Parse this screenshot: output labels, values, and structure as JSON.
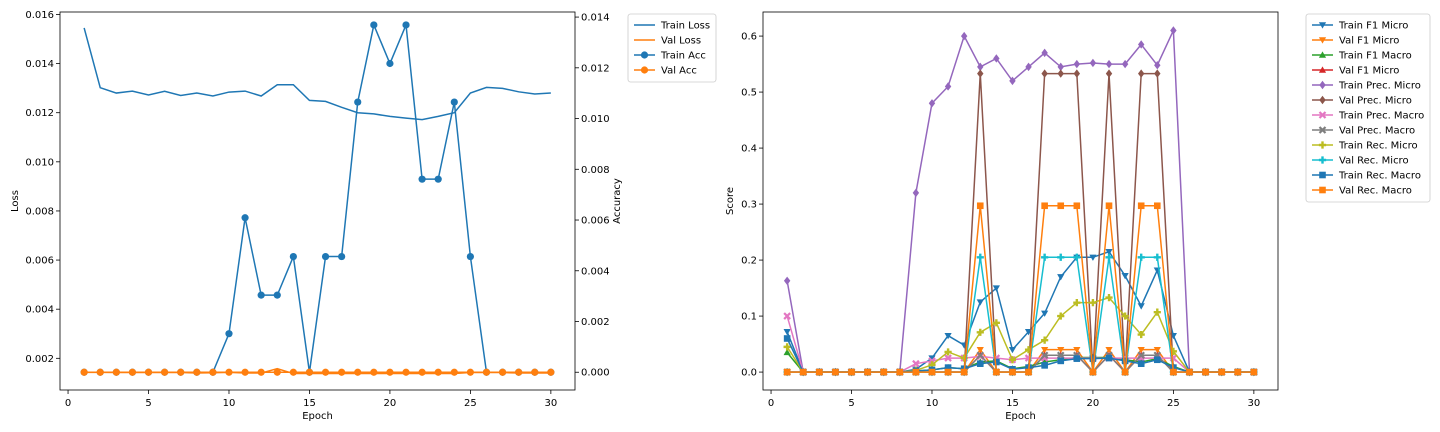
{
  "chart_data": [
    {
      "type": "line",
      "xlabel": "Epoch",
      "ylabel": "Loss",
      "y2label": "Accuracy",
      "xlim": [
        -0.5,
        31.5
      ],
      "ylim": [
        0.00071,
        0.0161
      ],
      "y2lim": [
        -0.0007,
        0.0142
      ],
      "xticks": [
        0,
        5,
        10,
        15,
        20,
        25,
        30
      ],
      "yticks": [
        "0.002",
        "0.004",
        "0.006",
        "0.008",
        "0.010",
        "0.012",
        "0.014",
        "0.016"
      ],
      "ytick_values": [
        0.002,
        0.004,
        0.006,
        0.008,
        0.01,
        0.012,
        0.014,
        0.016
      ],
      "y2ticks": [
        "0.000",
        "0.002",
        "0.004",
        "0.006",
        "0.008",
        "0.010",
        "0.012",
        "0.014"
      ],
      "y2tick_values": [
        0.0,
        0.002,
        0.004,
        0.006,
        0.008,
        0.01,
        0.012,
        0.014
      ],
      "legend_position": "outside-top-right",
      "x": [
        1,
        2,
        3,
        4,
        5,
        6,
        7,
        8,
        9,
        10,
        11,
        12,
        13,
        14,
        15,
        16,
        17,
        18,
        19,
        20,
        21,
        22,
        23,
        24,
        25,
        26,
        27,
        28,
        29,
        30
      ],
      "series": [
        {
          "name": "Train Loss",
          "axis": "left",
          "color": "#1f77b4",
          "marker": "none",
          "values": [
            0.01545,
            0.01302,
            0.0128,
            0.01288,
            0.01272,
            0.01287,
            0.0127,
            0.0128,
            0.01268,
            0.01284,
            0.01288,
            0.01268,
            0.01314,
            0.01314,
            0.0125,
            0.01246,
            0.01222,
            0.012,
            0.01195,
            0.01185,
            0.01178,
            0.01172,
            0.01185,
            0.012,
            0.0128,
            0.01303,
            0.01299,
            0.01285,
            0.01276,
            0.0128
          ]
        },
        {
          "name": "Val Loss",
          "axis": "left",
          "color": "#ff7f0e",
          "marker": "none",
          "values": [
            0.00143,
            0.00143,
            0.00142,
            0.00142,
            0.00142,
            0.00142,
            0.00142,
            0.0014,
            0.00141,
            0.00143,
            0.0014,
            0.0014,
            0.00158,
            0.00138,
            0.00138,
            0.00138,
            0.00138,
            0.00138,
            0.00138,
            0.00138,
            0.00138,
            0.00138,
            0.00138,
            0.00138,
            0.00142,
            0.00142,
            0.00142,
            0.0014,
            0.0014,
            0.0014
          ]
        },
        {
          "name": "Train Acc",
          "axis": "right",
          "color": "#1f77b4",
          "marker": "circle",
          "values": [
            0,
            0,
            0,
            0,
            0,
            0,
            0,
            0,
            0,
            0.00152,
            0.00609,
            0.00304,
            0.00304,
            0.00456,
            0,
            0.00456,
            0.00456,
            0.01065,
            0.01369,
            0.01217,
            0.01369,
            0.00761,
            0.00761,
            0.01065,
            0.00456,
            0,
            0,
            0,
            0,
            0
          ]
        },
        {
          "name": "Val Acc",
          "axis": "right",
          "color": "#ff7f0e",
          "marker": "circle",
          "values": [
            0,
            0,
            0,
            0,
            0,
            0,
            0,
            0,
            0,
            0,
            0,
            0,
            0,
            0,
            0,
            0,
            0,
            0,
            0,
            0,
            0,
            0,
            0,
            0,
            0,
            0,
            0,
            0,
            0,
            0
          ]
        }
      ]
    },
    {
      "type": "line",
      "xlabel": "Epoch",
      "ylabel": "Score",
      "xlim": [
        -0.5,
        31.5
      ],
      "ylim": [
        -0.032,
        0.643
      ],
      "xticks": [
        0,
        5,
        10,
        15,
        20,
        25,
        30
      ],
      "yticks": [
        "0.0",
        "0.1",
        "0.2",
        "0.3",
        "0.4",
        "0.5",
        "0.6"
      ],
      "ytick_values": [
        0.0,
        0.1,
        0.2,
        0.3,
        0.4,
        0.5,
        0.6
      ],
      "legend_position": "outside-top-right",
      "x": [
        1,
        2,
        3,
        4,
        5,
        6,
        7,
        8,
        9,
        10,
        11,
        12,
        13,
        14,
        15,
        16,
        17,
        18,
        19,
        20,
        21,
        22,
        23,
        24,
        25,
        26,
        27,
        28,
        29,
        30
      ],
      "series": [
        {
          "name": "Train F1 Micro",
          "color": "#1f77b4",
          "marker": "tri-down",
          "values": [
            0.072,
            0,
            0,
            0,
            0,
            0,
            0,
            0,
            0.005,
            0.025,
            0.065,
            0.048,
            0.125,
            0.15,
            0.04,
            0.072,
            0.105,
            0.17,
            0.205,
            0.205,
            0.215,
            0.172,
            0.118,
            0.182,
            0.065,
            0,
            0,
            0,
            0,
            0
          ]
        },
        {
          "name": "Val F1 Micro",
          "color": "#ff7f0e",
          "marker": "tri-down",
          "values": [
            0,
            0,
            0,
            0,
            0,
            0,
            0,
            0,
            0,
            0,
            0,
            0,
            0.04,
            0,
            0,
            0,
            0.04,
            0.04,
            0.04,
            0,
            0.04,
            0,
            0.04,
            0.04,
            0,
            0,
            0,
            0,
            0,
            0
          ]
        },
        {
          "name": "Train F1 Macro",
          "color": "#2ca02c",
          "marker": "tri-up",
          "values": [
            0.035,
            0,
            0,
            0,
            0,
            0,
            0,
            0,
            0.002,
            0.004,
            0.008,
            0.006,
            0.018,
            0.02,
            0.006,
            0.01,
            0.018,
            0.022,
            0.026,
            0.026,
            0.026,
            0.022,
            0.018,
            0.024,
            0.01,
            0,
            0,
            0,
            0,
            0
          ]
        },
        {
          "name": "Val F1 Micro",
          "color": "#d62728",
          "marker": "tri-up",
          "values": [
            0,
            0,
            0,
            0,
            0,
            0,
            0,
            0,
            0,
            0,
            0,
            0,
            0.03,
            0,
            0,
            0,
            0.03,
            0.03,
            0.03,
            0,
            0.03,
            0,
            0.03,
            0.03,
            0,
            0,
            0,
            0,
            0,
            0
          ]
        },
        {
          "name": "Train Prec. Micro",
          "color": "#9467bd",
          "marker": "diamond",
          "values": [
            0.163,
            0,
            0,
            0,
            0,
            0,
            0,
            0,
            0.32,
            0.48,
            0.51,
            0.6,
            0.545,
            0.56,
            0.52,
            0.545,
            0.57,
            0.545,
            0.55,
            0.552,
            0.55,
            0.55,
            0.585,
            0.548,
            0.61,
            0,
            0,
            0,
            0,
            0
          ]
        },
        {
          "name": "Val Prec. Micro",
          "color": "#8c564b",
          "marker": "diamond",
          "values": [
            0,
            0,
            0,
            0,
            0,
            0,
            0,
            0,
            0,
            0,
            0,
            0,
            0.533,
            0,
            0,
            0,
            0.533,
            0.533,
            0.533,
            0,
            0.533,
            0,
            0.533,
            0.533,
            0,
            0,
            0,
            0,
            0,
            0
          ]
        },
        {
          "name": "Train Prec. Macro",
          "color": "#e377c2",
          "marker": "x",
          "values": [
            0.1,
            0,
            0,
            0,
            0,
            0,
            0,
            0,
            0.015,
            0.02,
            0.025,
            0.025,
            0.028,
            0.025,
            0.022,
            0.025,
            0.025,
            0.025,
            0.025,
            0.025,
            0.025,
            0.025,
            0.025,
            0.025,
            0.025,
            0,
            0,
            0,
            0,
            0
          ]
        },
        {
          "name": "Val Prec. Macro",
          "color": "#7f7f7f",
          "marker": "x",
          "values": [
            0,
            0,
            0,
            0,
            0,
            0,
            0,
            0,
            0,
            0,
            0,
            0,
            0.03,
            0,
            0,
            0,
            0.03,
            0.03,
            0.03,
            0,
            0.03,
            0,
            0.03,
            0.03,
            0,
            0,
            0,
            0,
            0,
            0
          ]
        },
        {
          "name": "Train Rec. Micro",
          "color": "#bcbd22",
          "marker": "plus",
          "values": [
            0.045,
            0,
            0,
            0,
            0,
            0,
            0,
            0,
            0.003,
            0.013,
            0.036,
            0.025,
            0.071,
            0.088,
            0.022,
            0.04,
            0.057,
            0.1,
            0.124,
            0.124,
            0.133,
            0.1,
            0.067,
            0.107,
            0.037,
            0,
            0,
            0,
            0,
            0
          ]
        },
        {
          "name": "Val Rec. Micro",
          "color": "#17becf",
          "marker": "plus",
          "values": [
            0,
            0,
            0,
            0,
            0,
            0,
            0,
            0,
            0,
            0,
            0,
            0,
            0.205,
            0,
            0,
            0,
            0.205,
            0.205,
            0.205,
            0,
            0.205,
            0,
            0.205,
            0.205,
            0,
            0,
            0,
            0,
            0,
            0
          ]
        },
        {
          "name": "Train Rec. Macro",
          "color": "#1f77b4",
          "marker": "square",
          "values": [
            0.06,
            0,
            0,
            0,
            0,
            0,
            0,
            0,
            0.002,
            0.004,
            0.008,
            0.006,
            0.015,
            0.018,
            0.005,
            0.008,
            0.012,
            0.02,
            0.024,
            0.024,
            0.025,
            0.02,
            0.015,
            0.022,
            0.008,
            0,
            0,
            0,
            0,
            0
          ]
        },
        {
          "name": "Val Rec. Macro",
          "color": "#ff7f0e",
          "marker": "square",
          "values": [
            0,
            0,
            0,
            0,
            0,
            0,
            0,
            0,
            0,
            0,
            0,
            0,
            0.297,
            0,
            0,
            0,
            0.297,
            0.297,
            0.297,
            0,
            0.297,
            0,
            0.297,
            0.297,
            0,
            0,
            0,
            0,
            0,
            0
          ]
        }
      ]
    }
  ]
}
